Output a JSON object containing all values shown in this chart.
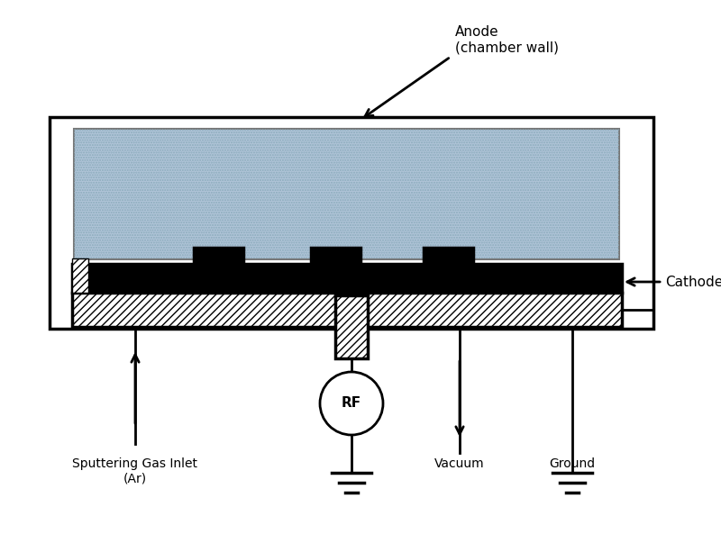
{
  "bg_color": "#ffffff",
  "fig_width": 8.0,
  "fig_height": 5.93,
  "labels": {
    "anode": "Anode\n(chamber wall)",
    "cathode": "Cathode",
    "sputtering": "Sputtering Gas Inlet\n(Ar)",
    "vacuum": "Vacuum",
    "ground": "Ground",
    "rf": "RF"
  },
  "font_size": 11,
  "target_color": "#b0c4d8",
  "target_hatch_color": "#8aabbb"
}
